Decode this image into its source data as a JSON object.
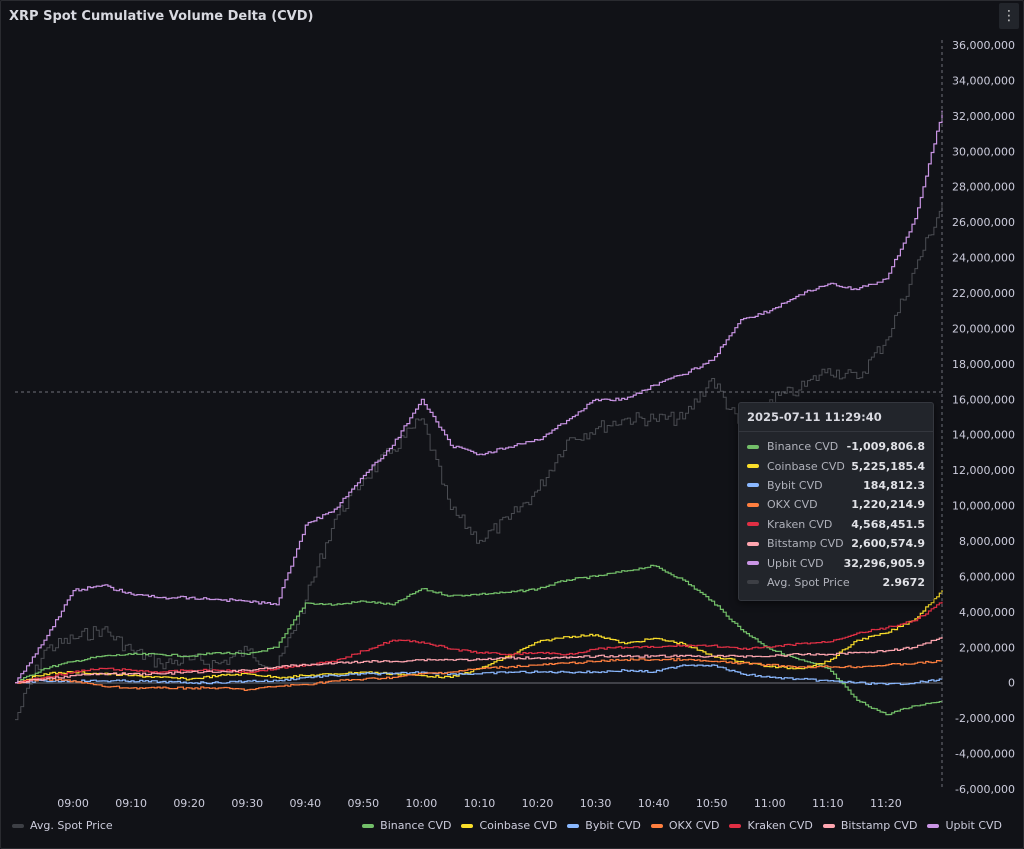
{
  "title": "XRP Spot Cumulative Volume Delta (CVD)",
  "menu_icon": "kebab-menu-icon",
  "tooltip": {
    "timestamp": "2025-07-11 11:29:40",
    "rows": [
      {
        "name": "Binance CVD",
        "value": "-1,009,806.8",
        "color": "#73bf69"
      },
      {
        "name": "Coinbase CVD",
        "value": "5,225,185.4",
        "color": "#fade2a"
      },
      {
        "name": "Bybit CVD",
        "value": "184,812.3",
        "color": "#8ab8ff"
      },
      {
        "name": "OKX CVD",
        "value": "1,220,214.9",
        "color": "#ff7f3f"
      },
      {
        "name": "Kraken CVD",
        "value": "4,568,451.5",
        "color": "#e02f44"
      },
      {
        "name": "Bitstamp CVD",
        "value": "2,600,574.9",
        "color": "#ffa6b0"
      },
      {
        "name": "Upbit CVD",
        "value": "32,296,905.9",
        "color": "#ca95e5"
      },
      {
        "name": "Avg. Spot Price",
        "value": "2.9672",
        "color": "#3d3f45"
      }
    ]
  },
  "legend": {
    "left": [
      {
        "name": "Avg. Spot Price",
        "color": "#3d3f45"
      }
    ],
    "right": [
      {
        "name": "Binance CVD",
        "color": "#73bf69"
      },
      {
        "name": "Coinbase CVD",
        "color": "#fade2a"
      },
      {
        "name": "Bybit CVD",
        "color": "#8ab8ff"
      },
      {
        "name": "OKX CVD",
        "color": "#ff7f3f"
      },
      {
        "name": "Kraken CVD",
        "color": "#e02f44"
      },
      {
        "name": "Bitstamp CVD",
        "color": "#ffa6b0"
      },
      {
        "name": "Upbit CVD",
        "color": "#ca95e5"
      }
    ]
  },
  "chart_data": {
    "type": "line",
    "title": "XRP Spot Cumulative Volume Delta (CVD)",
    "xlabel": "",
    "ylabel": "",
    "ylim": [
      -6000000,
      36000000
    ],
    "y_ticks": [
      "36,000,000",
      "34,000,000",
      "32,000,000",
      "30,000,000",
      "28,000,000",
      "26,000,000",
      "24,000,000",
      "22,000,000",
      "20,000,000",
      "18,000,000",
      "16,000,000",
      "14,000,000",
      "12,000,000",
      "10,000,000",
      "8,000,000",
      "6,000,000",
      "4,000,000",
      "2,000,000",
      "0",
      "-2,000,000",
      "-4,000,000",
      "-6,000,000"
    ],
    "x_ticks": [
      "09:00",
      "09:10",
      "09:20",
      "09:30",
      "09:40",
      "09:50",
      "10:00",
      "10:10",
      "10:20",
      "10:30",
      "10:40",
      "10:50",
      "11:00",
      "11:10",
      "11:20"
    ],
    "y_axis_position": "right",
    "price_axis": "hidden",
    "price_ylim": [
      2.664,
      3.05
    ],
    "grid": false,
    "legend_position": "bottom",
    "x": [
      "08:50",
      "08:55",
      "09:00",
      "09:05",
      "09:10",
      "09:15",
      "09:20",
      "09:25",
      "09:30",
      "09:35",
      "09:40",
      "09:45",
      "09:50",
      "09:55",
      "10:00",
      "10:05",
      "10:10",
      "10:15",
      "10:20",
      "10:25",
      "10:30",
      "10:35",
      "10:40",
      "10:45",
      "10:50",
      "10:55",
      "11:00",
      "11:05",
      "11:10",
      "11:15",
      "11:20",
      "11:25",
      "11:29:40"
    ],
    "series": [
      {
        "name": "Avg. Spot Price",
        "axis": "price",
        "color": "#4a4c52",
        "values": [
          2.7,
          2.736,
          2.742,
          2.747,
          2.736,
          2.729,
          2.731,
          2.729,
          2.736,
          2.726,
          2.762,
          2.804,
          2.825,
          2.84,
          2.856,
          2.809,
          2.793,
          2.804,
          2.819,
          2.845,
          2.851,
          2.856,
          2.856,
          2.856,
          2.877,
          2.851,
          2.866,
          2.871,
          2.882,
          2.877,
          2.897,
          2.934,
          2.9672
        ]
      },
      {
        "name": "Binance CVD",
        "color": "#73bf69",
        "values": [
          0,
          800000,
          1200000,
          1500000,
          1600000,
          1600000,
          1500000,
          1700000,
          1600000,
          2000000,
          4500000,
          4400000,
          4600000,
          4400000,
          5300000,
          4900000,
          5000000,
          5100000,
          5300000,
          5800000,
          6000000,
          6300000,
          6600000,
          5800000,
          4600000,
          3000000,
          1900000,
          1300000,
          800000,
          -1000000,
          -1800000,
          -1300000,
          -1009806.8
        ]
      },
      {
        "name": "Coinbase CVD",
        "color": "#fade2a",
        "values": [
          0,
          500000,
          600000,
          500000,
          400000,
          300000,
          200000,
          400000,
          500000,
          300000,
          400000,
          500000,
          600000,
          500000,
          400000,
          300000,
          800000,
          1500000,
          2300000,
          2600000,
          2700000,
          2200000,
          2500000,
          2200000,
          1500000,
          1200000,
          900000,
          800000,
          1200000,
          2400000,
          2800000,
          3600000,
          5225185.4
        ]
      },
      {
        "name": "Bybit CVD",
        "color": "#8ab8ff",
        "values": [
          0,
          100000,
          100000,
          100000,
          100000,
          50000,
          0,
          0,
          100000,
          100000,
          300000,
          400000,
          500000,
          500000,
          600000,
          500000,
          500000,
          600000,
          600000,
          600000,
          600000,
          700000,
          600000,
          1000000,
          1000000,
          500000,
          300000,
          200000,
          100000,
          0,
          -100000,
          0,
          184812.3
        ]
      },
      {
        "name": "OKX CVD",
        "color": "#ff7f3f",
        "values": [
          0,
          200000,
          100000,
          -200000,
          -300000,
          -300000,
          -300000,
          -300000,
          -400000,
          -200000,
          -100000,
          100000,
          200000,
          300000,
          500000,
          600000,
          800000,
          900000,
          1000000,
          1100000,
          1200000,
          1300000,
          1300000,
          1300000,
          1200000,
          1100000,
          1000000,
          900000,
          900000,
          900000,
          1000000,
          1100000,
          1220214.9
        ]
      },
      {
        "name": "Kraken CVD",
        "color": "#e02f44",
        "values": [
          0,
          300000,
          600000,
          800000,
          700000,
          600000,
          700000,
          700000,
          600000,
          800000,
          1000000,
          1200000,
          1800000,
          2400000,
          2300000,
          1900000,
          1700000,
          1600000,
          1700000,
          1600000,
          1900000,
          2000000,
          2000000,
          2100000,
          2100000,
          1900000,
          2000000,
          2200000,
          2300000,
          2800000,
          3100000,
          3500000,
          4568451.5
        ]
      },
      {
        "name": "Bitstamp CVD",
        "color": "#ffa6b0",
        "values": [
          0,
          200000,
          400000,
          500000,
          500000,
          500000,
          600000,
          600000,
          700000,
          900000,
          1000000,
          1100000,
          1200000,
          1200000,
          1300000,
          1300000,
          1300000,
          1400000,
          1400000,
          1400000,
          1500000,
          1500000,
          1500000,
          1500000,
          1500000,
          1500000,
          1500000,
          1600000,
          1600000,
          1700000,
          1800000,
          2000000,
          2600574.9
        ]
      },
      {
        "name": "Upbit CVD",
        "color": "#ca95e5",
        "values": [
          0,
          2400000,
          5200000,
          5500000,
          5000000,
          4800000,
          4800000,
          4700000,
          4600000,
          4400000,
          8900000,
          9800000,
          11700000,
          13400000,
          16000000,
          13400000,
          12900000,
          13300000,
          13700000,
          14800000,
          16000000,
          16000000,
          16800000,
          17400000,
          18200000,
          20500000,
          21000000,
          21900000,
          22500000,
          22200000,
          22800000,
          26200000,
          32296905.9
        ]
      }
    ]
  }
}
